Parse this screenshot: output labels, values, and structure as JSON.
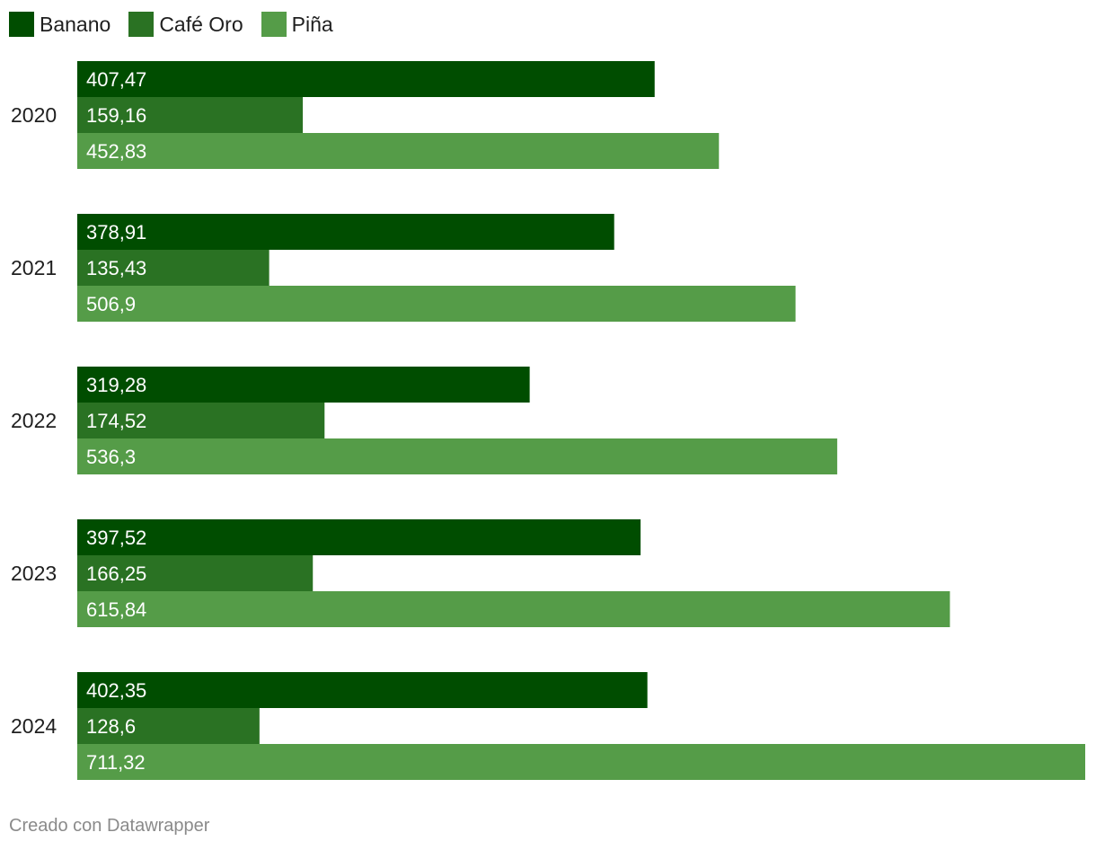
{
  "chart_data": {
    "type": "bar",
    "orientation": "horizontal",
    "categories": [
      "2020",
      "2021",
      "2022",
      "2023",
      "2024"
    ],
    "series": [
      {
        "name": "Banano",
        "color": "#004d00",
        "values": [
          407.47,
          378.91,
          319.28,
          397.52,
          402.35
        ],
        "labels": [
          "407,47",
          "378,91",
          "319,28",
          "397,52",
          "402,35"
        ]
      },
      {
        "name": "Café Oro",
        "color": "#2a7223",
        "values": [
          159.16,
          135.43,
          174.52,
          166.25,
          128.6
        ],
        "labels": [
          "159,16",
          "135,43",
          "174,52",
          "166,25",
          "128,6"
        ]
      },
      {
        "name": "Piña",
        "color": "#559c48",
        "values": [
          452.83,
          506.9,
          536.3,
          615.84,
          711.32
        ],
        "labels": [
          "452,83",
          "506,9",
          "536,3",
          "615,84",
          "711,32"
        ]
      }
    ],
    "xlim": [
      0,
      711.32
    ],
    "grid": false,
    "legend": "top-left"
  },
  "footer": {
    "credit": "Creado con Datawrapper"
  }
}
